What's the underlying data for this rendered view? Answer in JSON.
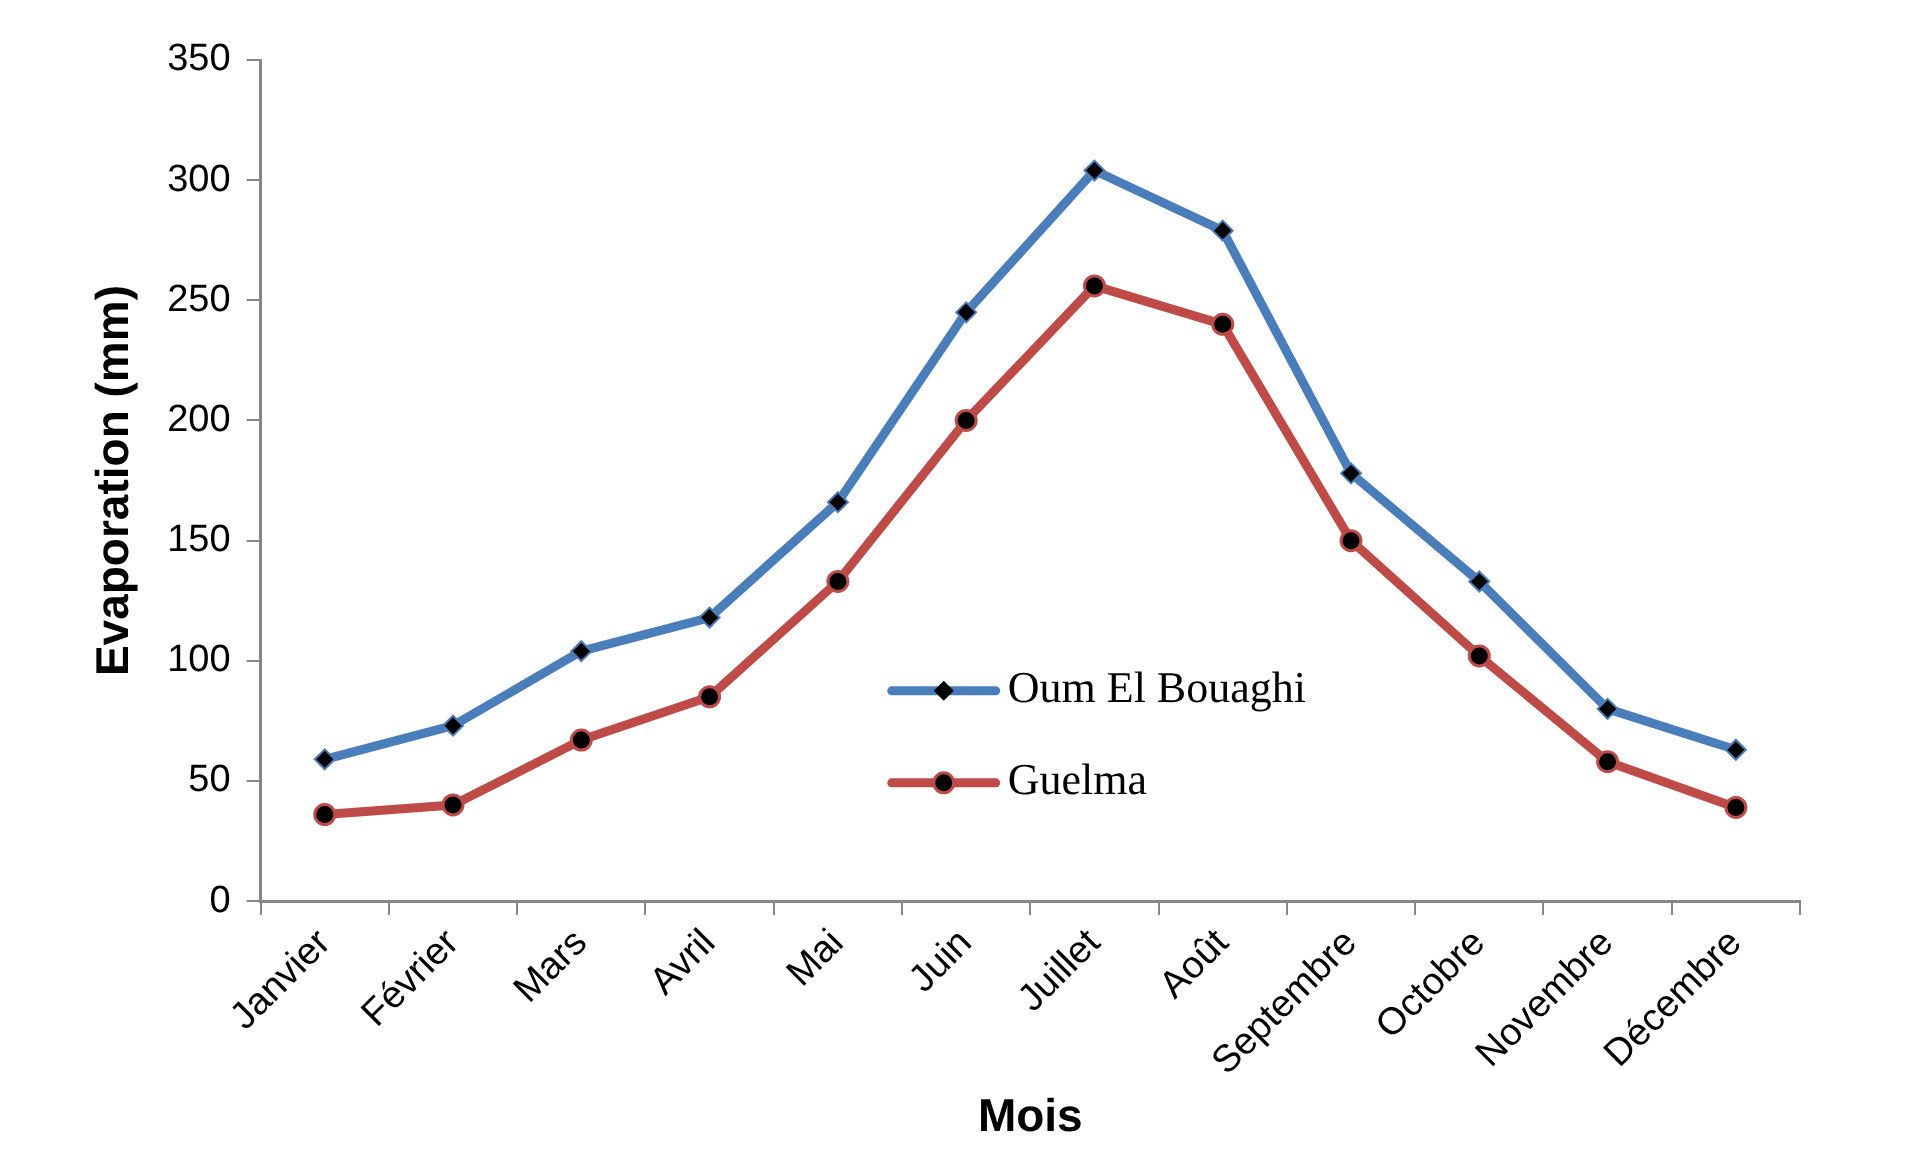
{
  "chart_data": {
    "type": "line",
    "xlabel": "Mois",
    "ylabel": "Evaporation (mm)",
    "categories": [
      "Janvier",
      "Février",
      "Mars",
      "Avril",
      "Mai",
      "Juin",
      "Juillet",
      "Août",
      "Septembre",
      "Octobre",
      "Novembre",
      "Décembre"
    ],
    "series": [
      {
        "name": "Oum El Bouaghi",
        "color": "#4a7ebb",
        "marker": "diamond",
        "values": [
          59,
          73,
          104,
          118,
          166,
          245,
          304,
          279,
          178,
          133,
          80,
          63
        ]
      },
      {
        "name": "Guelma",
        "color": "#be4b48",
        "marker": "circle",
        "values": [
          36,
          40,
          67,
          85,
          133,
          200,
          256,
          240,
          150,
          102,
          58,
          39
        ]
      }
    ],
    "ylim": [
      0,
      350
    ],
    "yticks": [
      0,
      50,
      100,
      150,
      200,
      250,
      300,
      350
    ],
    "grid": false,
    "legend": "center",
    "line_style": "solid"
  }
}
